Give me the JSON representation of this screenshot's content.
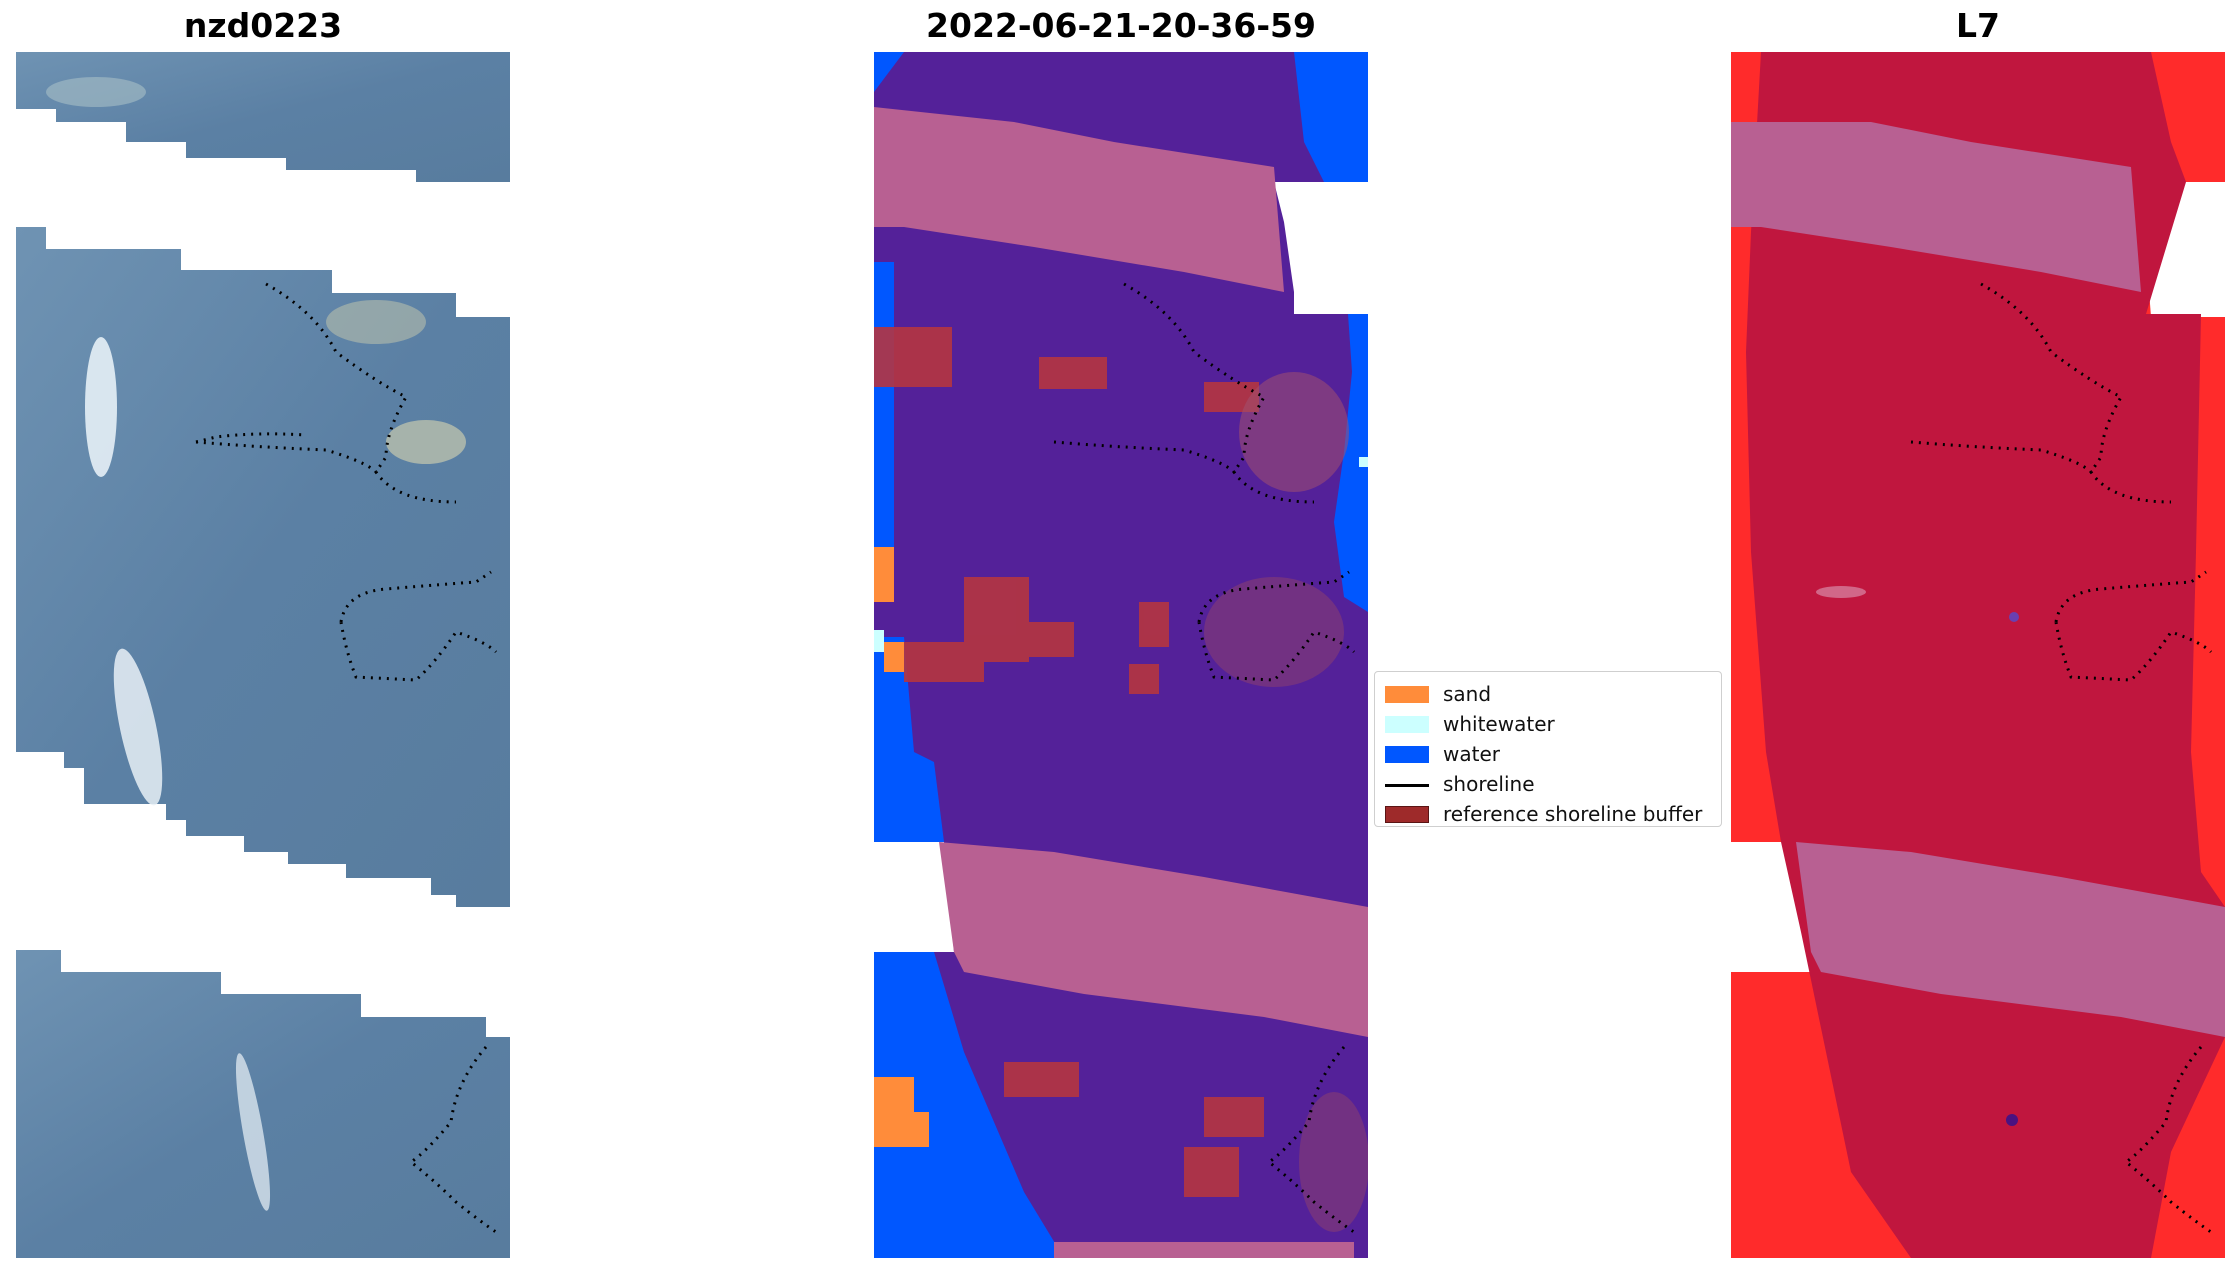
{
  "titles": {
    "left": "nzd0223",
    "middle": "2022-06-21-20-36-59",
    "right": "L7"
  },
  "legend": {
    "items": [
      {
        "label": "sand",
        "color": "#ff8c3a",
        "kind": "patch"
      },
      {
        "label": "whitewater",
        "color": "#ccffff",
        "kind": "patch"
      },
      {
        "label": "water",
        "color": "#0057ff",
        "kind": "patch"
      },
      {
        "label": "shoreline",
        "color": "#000000",
        "kind": "line"
      },
      {
        "label": "reference shoreline buffer",
        "color": "#9e2a2a",
        "kind": "patch"
      }
    ]
  },
  "colors": {
    "rgb_water": "#5f84a8",
    "rgb_surf": "#dfe9f0",
    "mask_background": "#542199",
    "mask_band": "#b86092",
    "mask_water": "#0057ff",
    "mask_sand": "#ff8c3a",
    "buffer": "#b53540",
    "index_background": "#c0163e",
    "index_edge": "#ff2b2b",
    "shoreline": "#000000"
  }
}
